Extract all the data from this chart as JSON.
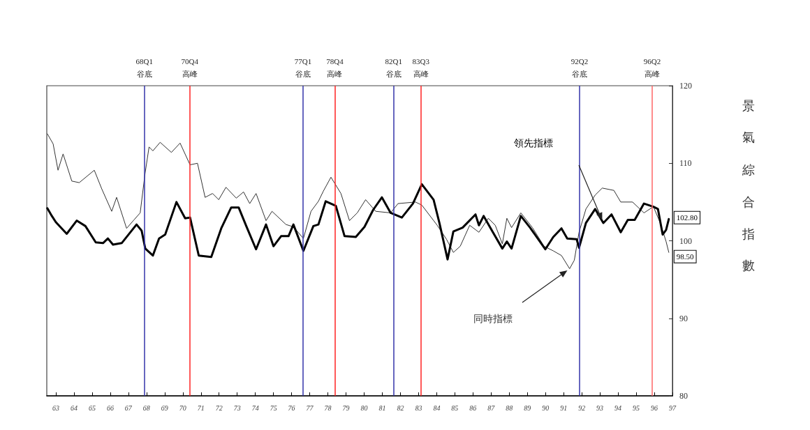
{
  "chart_data": {
    "type": "line",
    "ylabel": "景氣綜合指數",
    "xlim": [
      63,
      97.5
    ],
    "xticks": [
      {
        "value": 63.5,
        "label": "63"
      },
      {
        "value": 64.5,
        "label": "64"
      },
      {
        "value": 65.5,
        "label": "65"
      },
      {
        "value": 66.5,
        "label": "66"
      },
      {
        "value": 67.5,
        "label": "67"
      },
      {
        "value": 68.5,
        "label": "68"
      },
      {
        "value": 69.5,
        "label": "69"
      },
      {
        "value": 70.5,
        "label": "70"
      },
      {
        "value": 71.5,
        "label": "71"
      },
      {
        "value": 72.5,
        "label": "72"
      },
      {
        "value": 73.5,
        "label": "73"
      },
      {
        "value": 74.5,
        "label": "74"
      },
      {
        "value": 75.5,
        "label": "75"
      },
      {
        "value": 76.5,
        "label": "76"
      },
      {
        "value": 77.5,
        "label": "77"
      },
      {
        "value": 78.5,
        "label": "78"
      },
      {
        "value": 79.5,
        "label": "79"
      },
      {
        "value": 80.5,
        "label": "80"
      },
      {
        "value": 81.5,
        "label": "81"
      },
      {
        "value": 82.5,
        "label": "82"
      },
      {
        "value": 83.5,
        "label": "83"
      },
      {
        "value": 84.5,
        "label": "84"
      },
      {
        "value": 85.5,
        "label": "85"
      },
      {
        "value": 86.5,
        "label": "86"
      },
      {
        "value": 87.5,
        "label": "87"
      },
      {
        "value": 88.5,
        "label": "88"
      },
      {
        "value": 89.5,
        "label": "89"
      },
      {
        "value": 90.5,
        "label": "90"
      },
      {
        "value": 91.5,
        "label": "91"
      },
      {
        "value": 92.5,
        "label": "92"
      },
      {
        "value": 93.5,
        "label": "93"
      },
      {
        "value": 94.5,
        "label": "94"
      },
      {
        "value": 95.5,
        "label": "95"
      },
      {
        "value": 96.5,
        "label": "96"
      },
      {
        "value": 97.5,
        "label": "97"
      }
    ],
    "ylim": [
      80,
      120
    ],
    "yticks": [
      80,
      90,
      100,
      110,
      120
    ],
    "legend": false,
    "series": [
      {
        "name": "領先指標",
        "color": "#000000",
        "x": [
          63.03,
          63.28,
          63.5,
          64.1,
          64.65,
          65.13,
          65.7,
          66.1,
          66.37,
          66.65,
          67.13,
          67.95,
          68.23,
          68.43,
          68.85,
          69.19,
          69.53,
          70.15,
          70.63,
          70.9,
          71.38,
          72.07,
          72.62,
          73.17,
          73.58,
          74.0,
          74.54,
          75.09,
          75.5,
          75.92,
          76.33,
          76.6,
          77.15,
          77.7,
          77.98,
          78.38,
          78.94,
          79.42,
          80.04,
          80.52,
          81.0,
          81.48,
          81.96,
          82.58,
          83.19,
          83.68,
          84.33,
          84.65,
          85.1,
          85.42,
          85.93,
          86.64,
          86.83,
          87.09,
          87.6,
          88.12,
          88.37,
          88.63,
          89.14,
          89.65,
          90.49,
          90.93,
          91.38,
          91.7,
          92.22,
          92.35,
          92.73,
          93.24,
          93.69,
          94.14,
          94.65,
          95.04,
          95.42,
          95.93,
          96.45,
          96.7,
          96.96,
          97.15,
          97.3
        ],
        "values": [
          104.2,
          103.2,
          102.4,
          100.9,
          102.6,
          101.9,
          99.8,
          99.7,
          100.3,
          99.5,
          99.7,
          102.1,
          101.3,
          99.0,
          98.1,
          100.3,
          100.8,
          105.0,
          102.9,
          103.0,
          98.1,
          97.9,
          101.6,
          104.3,
          104.3,
          101.9,
          98.9,
          102.1,
          99.3,
          100.6,
          100.6,
          102.1,
          98.7,
          101.9,
          102.1,
          105.1,
          104.5,
          100.6,
          100.5,
          101.8,
          104.0,
          105.6,
          103.6,
          103.0,
          104.8,
          107.3,
          105.3,
          102.3,
          97.6,
          101.2,
          101.7,
          103.4,
          102.0,
          103.2,
          101.1,
          99.0,
          99.9,
          99.0,
          103.2,
          101.7,
          98.9,
          100.5,
          101.6,
          100.3,
          100.2,
          99.1,
          102.3,
          104.1,
          102.3,
          103.4,
          101.1,
          102.7,
          102.7,
          104.8,
          104.4,
          104.1,
          100.8,
          101.4,
          102.8
        ],
        "value_labels": [
          null,
          null,
          null,
          null,
          null,
          null,
          null,
          null,
          null,
          null,
          null,
          null,
          null,
          null,
          null,
          null,
          null,
          null,
          null,
          null,
          null,
          null,
          null,
          null,
          null,
          null,
          null,
          null,
          null,
          null,
          null,
          null,
          null,
          null,
          null,
          null,
          null,
          null,
          null,
          null,
          null,
          null,
          null,
          null,
          null,
          null,
          null,
          null,
          null,
          null,
          null,
          null,
          null,
          null,
          null,
          null,
          null,
          null,
          null,
          null,
          null,
          null,
          null,
          null,
          null,
          null,
          null,
          null,
          null,
          null,
          null,
          null,
          null,
          null,
          null,
          null,
          null,
          null,
          "102.80"
        ]
      },
      {
        "name": "同時指標",
        "color": "#333333",
        "x": [
          63.03,
          63.35,
          63.62,
          63.9,
          64.38,
          64.79,
          65.62,
          66.03,
          66.58,
          66.85,
          67.4,
          67.81,
          68.15,
          68.42,
          68.64,
          68.85,
          69.25,
          69.87,
          70.35,
          70.9,
          71.31,
          71.73,
          72.14,
          72.48,
          72.88,
          73.45,
          73.85,
          74.19,
          74.54,
          75.09,
          75.42,
          76.19,
          76.6,
          77.15,
          77.57,
          77.98,
          78.25,
          78.67,
          79.22,
          79.69,
          80.12,
          80.58,
          81.14,
          81.96,
          82.37,
          83.33,
          83.68,
          84.53,
          85.04,
          85.42,
          85.8,
          86.32,
          86.83,
          87.35,
          87.73,
          88.12,
          88.37,
          88.63,
          89.14,
          89.78,
          90.42,
          90.93,
          91.38,
          91.83,
          92.09,
          92.35,
          92.73,
          93.24,
          93.63,
          94.27,
          94.65,
          95.3,
          95.93,
          96.45,
          96.83,
          97.15,
          97.3
        ],
        "values": [
          113.8,
          112.5,
          109.1,
          111.2,
          107.7,
          107.5,
          109.1,
          106.7,
          103.8,
          105.6,
          101.6,
          102.7,
          103.6,
          108.7,
          112.1,
          111.6,
          112.7,
          111.4,
          112.6,
          109.8,
          110.0,
          105.6,
          106.1,
          105.3,
          106.9,
          105.5,
          106.3,
          104.8,
          106.1,
          102.6,
          103.8,
          102.1,
          101.8,
          100.3,
          103.8,
          105.1,
          106.4,
          108.2,
          106.1,
          102.6,
          103.6,
          105.3,
          103.8,
          103.6,
          104.8,
          105.0,
          104.6,
          102.0,
          100.2,
          98.5,
          99.3,
          102.0,
          101.1,
          102.9,
          102.0,
          99.6,
          102.9,
          101.7,
          103.6,
          101.7,
          99.3,
          98.7,
          98.1,
          96.4,
          97.5,
          101.1,
          104.1,
          105.9,
          106.8,
          106.5,
          105.0,
          105.0,
          103.6,
          104.4,
          102.3,
          99.9,
          98.5
        ],
        "value_labels": [
          null,
          null,
          null,
          null,
          null,
          null,
          null,
          null,
          null,
          null,
          null,
          null,
          null,
          null,
          null,
          null,
          null,
          null,
          null,
          null,
          null,
          null,
          null,
          null,
          null,
          null,
          null,
          null,
          null,
          null,
          null,
          null,
          null,
          null,
          null,
          null,
          null,
          null,
          null,
          null,
          null,
          null,
          null,
          null,
          null,
          null,
          null,
          null,
          null,
          null,
          null,
          null,
          null,
          null,
          null,
          null,
          null,
          null,
          null,
          null,
          null,
          null,
          null,
          null,
          null,
          null,
          null,
          null,
          null,
          null,
          null,
          null,
          null,
          null,
          null,
          null,
          "98.50"
        ]
      }
    ],
    "ref_lines": [
      {
        "axis": "x",
        "value": 68.375,
        "label": "68Q1\n谷底",
        "color": "#3333aa"
      },
      {
        "axis": "x",
        "value": 70.875,
        "label": "70Q4\n高峰",
        "color": "#ff2222"
      },
      {
        "axis": "x",
        "value": 77.125,
        "label": "77Q1\n谷底",
        "color": "#3333aa"
      },
      {
        "axis": "x",
        "value": 78.875,
        "label": "78Q4\n高峰",
        "color": "#ff2222"
      },
      {
        "axis": "x",
        "value": 82.125,
        "label": "82Q1\n谷底",
        "color": "#3333aa"
      },
      {
        "axis": "x",
        "value": 83.625,
        "label": "83Q3\n高峰",
        "color": "#ff2222"
      },
      {
        "axis": "x",
        "value": 92.375,
        "label": "92Q2\n谷底",
        "color": "#3333aa"
      },
      {
        "axis": "x",
        "value": 96.375,
        "label": "96Q2\n高峰",
        "color": "#ff6666"
      }
    ]
  }
}
